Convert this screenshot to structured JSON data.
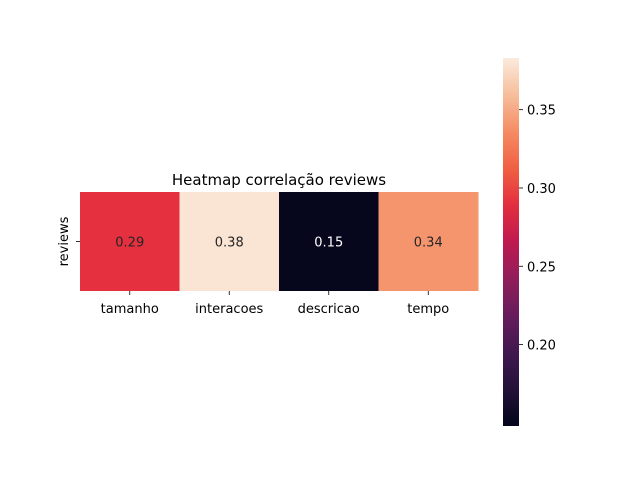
{
  "chart_data": {
    "type": "heatmap",
    "title": "Heatmap correlação reviews",
    "row_labels": [
      "reviews"
    ],
    "col_labels": [
      "tamanho",
      "interacoes",
      "descricao",
      "tempo"
    ],
    "values": [
      [
        0.29,
        0.38,
        0.15,
        0.34
      ]
    ],
    "value_labels": [
      [
        "0.29",
        "0.38",
        "0.15",
        "0.34"
      ]
    ],
    "colorbar": {
      "min": 0.148,
      "max": 0.383,
      "ticks": [
        0.2,
        0.25,
        0.3,
        0.35
      ],
      "tick_labels": [
        "0.20",
        "0.25",
        "0.30",
        "0.35"
      ],
      "colormap": "rocket",
      "low_color": "#03051a",
      "high_color": "#faebdd"
    },
    "grid": false,
    "xlabel": "",
    "ylabel": ""
  }
}
